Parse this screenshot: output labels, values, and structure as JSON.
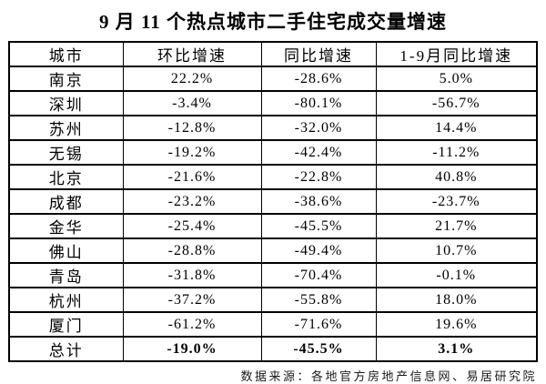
{
  "chart_data": {
    "type": "table",
    "title": "9 月 11 个热点城市二手住宅成交量增速",
    "columns": [
      "城市",
      "环比增速",
      "同比增速",
      "1-9月同比增速"
    ],
    "rows": [
      [
        "南京",
        "22.2%",
        "-28.6%",
        "5.0%"
      ],
      [
        "深圳",
        "-3.4%",
        "-80.1%",
        "-56.7%"
      ],
      [
        "苏州",
        "-12.8%",
        "-32.0%",
        "14.4%"
      ],
      [
        "无锡",
        "-19.2%",
        "-42.4%",
        "-11.2%"
      ],
      [
        "北京",
        "-21.6%",
        "-22.8%",
        "40.8%"
      ],
      [
        "成都",
        "-23.2%",
        "-38.6%",
        "-23.7%"
      ],
      [
        "金华",
        "-25.4%",
        "-45.5%",
        "21.7%"
      ],
      [
        "佛山",
        "-28.8%",
        "-49.4%",
        "10.7%"
      ],
      [
        "青岛",
        "-31.8%",
        "-70.4%",
        "-0.1%"
      ],
      [
        "杭州",
        "-37.2%",
        "-55.8%",
        "18.0%"
      ],
      [
        "厦门",
        "-61.2%",
        "-71.6%",
        "19.6%"
      ],
      [
        "总计",
        "-19.0%",
        "-45.5%",
        "3.1%"
      ]
    ],
    "total_row_label": "总计"
  },
  "footer": {
    "source_note": "数据来源：各地官方房地产信息网、易居研究院"
  },
  "colors": {
    "text": "#000000",
    "border": "#000000",
    "background": "#ffffff"
  }
}
